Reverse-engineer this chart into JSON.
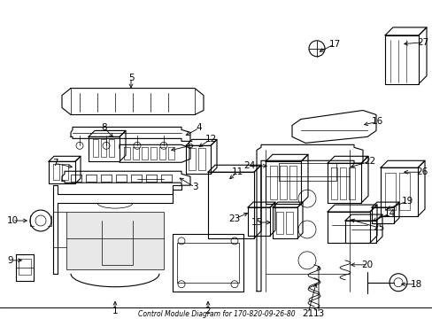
{
  "title": "Control Module Diagram for 170-820-09-26-80",
  "background_color": "#ffffff",
  "line_color": "#000000",
  "figsize": [
    4.89,
    3.6
  ],
  "dpi": 100
}
